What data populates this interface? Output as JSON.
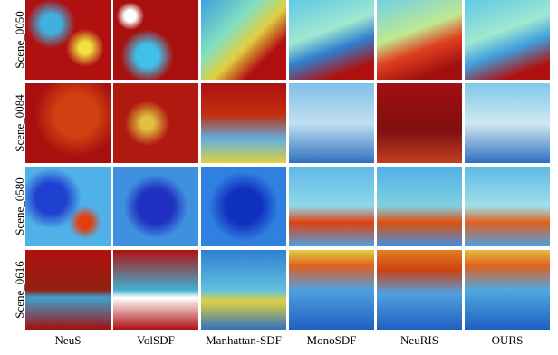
{
  "figure": {
    "rows": [
      "Scene_0050",
      "Scene_0084",
      "Scene_0580",
      "Scene_0616"
    ],
    "columns": [
      "NeuS",
      "VolSDF",
      "Manhattan-SDF",
      "MonoSDF",
      "NeuRIS",
      "OURS"
    ]
  }
}
